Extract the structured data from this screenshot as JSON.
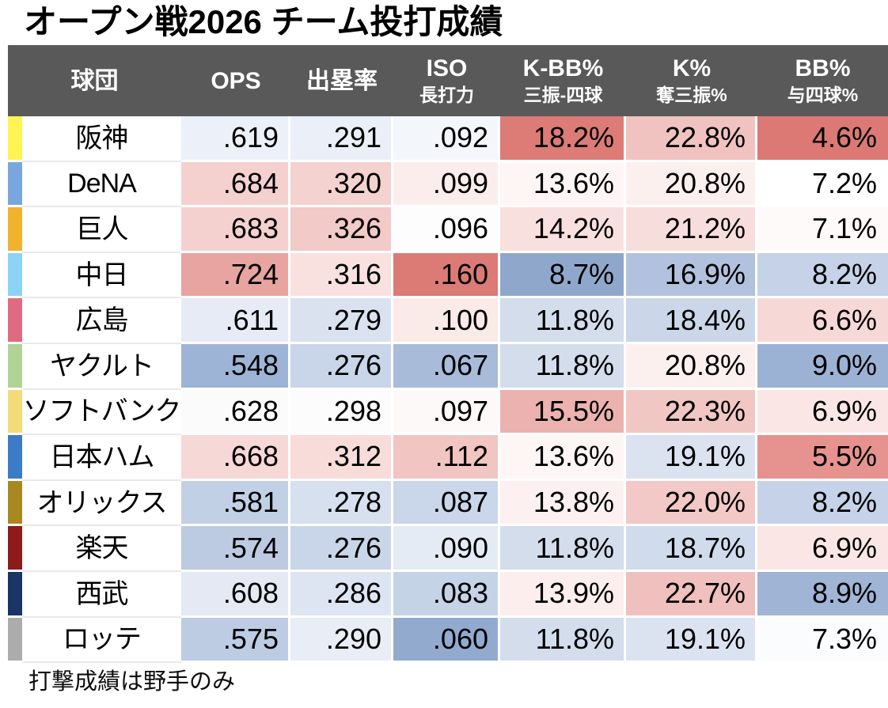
{
  "title": "オープン戦2026 チーム投打成績",
  "footnote": "打撃成績は野手のみ",
  "table": {
    "header_bg": "#595959",
    "header_text_color": "#ffffff",
    "columns": [
      {
        "key": "team",
        "main": "球団",
        "sub": ""
      },
      {
        "key": "ops",
        "main": "OPS",
        "sub": ""
      },
      {
        "key": "obp",
        "main": "出塁率",
        "sub": ""
      },
      {
        "key": "iso",
        "main": "ISO",
        "sub": "長打力"
      },
      {
        "key": "kbb",
        "main": "K-BB%",
        "sub": "三振-四球"
      },
      {
        "key": "k",
        "main": "K%",
        "sub": "奪三振%"
      },
      {
        "key": "bb",
        "main": "BB%",
        "sub": "与四球%"
      }
    ],
    "rows": [
      {
        "team": "阪神",
        "team_color": "#FFF451",
        "cells": [
          {
            "v": ".619",
            "bg": "#ECF0F8"
          },
          {
            "v": ".291",
            "bg": "#EBEFF7"
          },
          {
            "v": ".092",
            "bg": "#F3F6FB"
          },
          {
            "v": "18.2%",
            "bg": "#DD7B76"
          },
          {
            "v": "22.8%",
            "bg": "#F0C3C0"
          },
          {
            "v": "4.6%",
            "bg": "#DC7974"
          }
        ]
      },
      {
        "team": "DeNA",
        "team_color": "#79A7DD",
        "cells": [
          {
            "v": ".684",
            "bg": "#F4D1CF"
          },
          {
            "v": ".320",
            "bg": "#F4D2D0"
          },
          {
            "v": ".099",
            "bg": "#FBEDEC"
          },
          {
            "v": "13.6%",
            "bg": "#FDF6F5"
          },
          {
            "v": "20.8%",
            "bg": "#FCF0EF"
          },
          {
            "v": "7.2%",
            "bg": "#FFFFFF"
          }
        ]
      },
      {
        "team": "巨人",
        "team_color": "#F1B32E",
        "cells": [
          {
            "v": ".683",
            "bg": "#F4D1CF"
          },
          {
            "v": ".326",
            "bg": "#F2CAC8"
          },
          {
            "v": ".096",
            "bg": "#FEFDFD"
          },
          {
            "v": "14.2%",
            "bg": "#F8E0DE"
          },
          {
            "v": "21.2%",
            "bg": "#F7DEDC"
          },
          {
            "v": "7.1%",
            "bg": "#FEFAF9"
          }
        ]
      },
      {
        "team": "中日",
        "team_color": "#8BD4F5",
        "cells": [
          {
            "v": ".724",
            "bg": "#E7A4A0"
          },
          {
            "v": ".316",
            "bg": "#F8E1DF"
          },
          {
            "v": ".160",
            "bg": "#DC7A75"
          },
          {
            "v": "8.7%",
            "bg": "#90A7CC"
          },
          {
            "v": "16.9%",
            "bg": "#B2C2DE"
          },
          {
            "v": "8.2%",
            "bg": "#C5D2E7"
          }
        ]
      },
      {
        "team": "広島",
        "team_color": "#E06A80",
        "cells": [
          {
            "v": ".611",
            "bg": "#E6EBF5"
          },
          {
            "v": ".279",
            "bg": "#DAE2F0"
          },
          {
            "v": ".100",
            "bg": "#FAEAE8"
          },
          {
            "v": "11.8%",
            "bg": "#D3DDEC"
          },
          {
            "v": "18.4%",
            "bg": "#CBD7E9"
          },
          {
            "v": "6.6%",
            "bg": "#F6D9D7"
          }
        ]
      },
      {
        "team": "ヤクルト",
        "team_color": "#B2D296",
        "cells": [
          {
            "v": ".548",
            "bg": "#9EB4D6"
          },
          {
            "v": ".276",
            "bg": "#C9D5E8"
          },
          {
            "v": ".067",
            "bg": "#A8BCDA"
          },
          {
            "v": "11.8%",
            "bg": "#D3DDEC"
          },
          {
            "v": "20.8%",
            "bg": "#FCF0EF"
          },
          {
            "v": "9.0%",
            "bg": "#9CB2D5"
          }
        ]
      },
      {
        "team": "ソフトバンク",
        "team_color": "#F3DC78",
        "cells": [
          {
            "v": ".628",
            "bg": "#FBFBFC"
          },
          {
            "v": ".298",
            "bg": "#FCFCFD"
          },
          {
            "v": ".097",
            "bg": "#FDF9F8"
          },
          {
            "v": "15.5%",
            "bg": "#ECB2AF"
          },
          {
            "v": "22.3%",
            "bg": "#F1C7C4"
          },
          {
            "v": "6.9%",
            "bg": "#FAE7E5"
          }
        ]
      },
      {
        "team": "日本ハム",
        "team_color": "#3C7CC6",
        "cells": [
          {
            "v": ".668",
            "bg": "#F6D8D6"
          },
          {
            "v": ".312",
            "bg": "#F7DCDA"
          },
          {
            "v": ".112",
            "bg": "#F1C5C2"
          },
          {
            "v": "13.6%",
            "bg": "#FDF6F5"
          },
          {
            "v": "19.1%",
            "bg": "#DBE3F1"
          },
          {
            "v": "5.5%",
            "bg": "#E69390"
          }
        ]
      },
      {
        "team": "オリックス",
        "team_color": "#A8891F",
        "cells": [
          {
            "v": ".581",
            "bg": "#C2D0E5"
          },
          {
            "v": ".278",
            "bg": "#D7E0EF"
          },
          {
            "v": ".087",
            "bg": "#CAD6E9"
          },
          {
            "v": "13.8%",
            "bg": "#FCF1F0"
          },
          {
            "v": "22.0%",
            "bg": "#F2C9C6"
          },
          {
            "v": "8.2%",
            "bg": "#C5D2E7"
          }
        ]
      },
      {
        "team": "楽天",
        "team_color": "#8E1B1B",
        "cells": [
          {
            "v": ".574",
            "bg": "#BCCBE2"
          },
          {
            "v": ".276",
            "bg": "#C9D5E8"
          },
          {
            "v": ".090",
            "bg": "#E5EBF4"
          },
          {
            "v": "11.8%",
            "bg": "#D3DDEC"
          },
          {
            "v": "18.7%",
            "bg": "#D0DBEC"
          },
          {
            "v": "6.9%",
            "bg": "#FAE7E5"
          }
        ]
      },
      {
        "team": "西武",
        "team_color": "#1A3467",
        "cells": [
          {
            "v": ".608",
            "bg": "#E4E9F4"
          },
          {
            "v": ".286",
            "bg": "#DEE5F2"
          },
          {
            "v": ".083",
            "bg": "#C5D3E7"
          },
          {
            "v": "13.9%",
            "bg": "#FBEEED"
          },
          {
            "v": "22.7%",
            "bg": "#EFC0BD"
          },
          {
            "v": "8.9%",
            "bg": "#A0B5D6"
          }
        ]
      },
      {
        "team": "ロッテ",
        "team_color": "#ACACAC",
        "cells": [
          {
            "v": ".575",
            "bg": "#BDCCE3"
          },
          {
            "v": ".290",
            "bg": "#E8EDF6"
          },
          {
            "v": ".060",
            "bg": "#93AACF"
          },
          {
            "v": "11.8%",
            "bg": "#D3DDEC"
          },
          {
            "v": "19.1%",
            "bg": "#DBE3F1"
          },
          {
            "v": "7.3%",
            "bg": "#FBFCFD"
          }
        ]
      }
    ]
  },
  "chart_data": {
    "type": "table",
    "title": "オープン戦2026 チーム投打成績",
    "footnote": "打撃成績は野手のみ",
    "columns": [
      "球団",
      "OPS",
      "出塁率",
      "ISO 長打力",
      "K-BB% 三振-四球",
      "K% 奪三振%",
      "BB% 与四球%"
    ],
    "teams": [
      "阪神",
      "DeNA",
      "巨人",
      "中日",
      "広島",
      "ヤクルト",
      "ソフトバンク",
      "日本ハム",
      "オリックス",
      "楽天",
      "西武",
      "ロッテ"
    ],
    "series": [
      {
        "name": "OPS",
        "values": [
          0.619,
          0.684,
          0.683,
          0.724,
          0.611,
          0.548,
          0.628,
          0.668,
          0.581,
          0.574,
          0.608,
          0.575
        ]
      },
      {
        "name": "出塁率",
        "values": [
          0.291,
          0.32,
          0.326,
          0.316,
          0.279,
          0.276,
          0.298,
          0.312,
          0.278,
          0.276,
          0.286,
          0.29
        ]
      },
      {
        "name": "ISO",
        "values": [
          0.092,
          0.099,
          0.096,
          0.16,
          0.1,
          0.067,
          0.097,
          0.112,
          0.087,
          0.09,
          0.083,
          0.06
        ]
      },
      {
        "name": "K-BB%",
        "values": [
          18.2,
          13.6,
          14.2,
          8.7,
          11.8,
          11.8,
          15.5,
          13.6,
          13.8,
          11.8,
          13.9,
          11.8
        ]
      },
      {
        "name": "K%",
        "values": [
          22.8,
          20.8,
          21.2,
          16.9,
          18.4,
          20.8,
          22.3,
          19.1,
          22.0,
          18.7,
          22.7,
          19.1
        ]
      },
      {
        "name": "BB%",
        "values": [
          4.6,
          7.2,
          7.1,
          8.2,
          6.6,
          9.0,
          6.9,
          5.5,
          8.2,
          6.9,
          8.9,
          7.3
        ]
      }
    ],
    "layout_hints": {
      "heatmap": "red-white-blue 3-color scale per column; red = high OPS/ISO/K-BB%/K% and low BB%, blue = opposite",
      "team_color_bars_left": true
    }
  }
}
